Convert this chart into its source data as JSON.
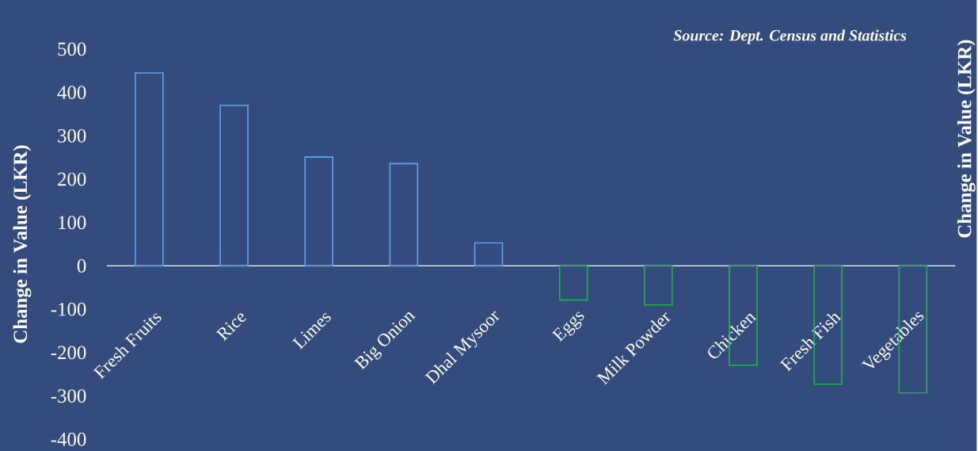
{
  "chart_data": {
    "type": "bar",
    "categories": [
      "Fresh Fruits",
      "Rice",
      "Limes",
      "Big Onion",
      "Dhal Mysoor",
      "Eggs",
      "Milk Powder",
      "Chicken",
      "Fresh Fish",
      "Vegetables"
    ],
    "values": [
      445,
      370,
      251,
      236,
      53,
      -79,
      -90,
      -229,
      -273,
      -293
    ],
    "colors": [
      "#5aa5ee",
      "#5aa5ee",
      "#5aa5ee",
      "#5aa5ee",
      "#5aa5ee",
      "#22b24c",
      "#22b24c",
      "#22b24c",
      "#22b24c",
      "#22b24c"
    ],
    "ylim": [
      -400,
      500
    ],
    "yticks": [
      -400,
      -300,
      -200,
      -100,
      0,
      100,
      200,
      300,
      400,
      500
    ],
    "ylabel": "Change in Value (LKR)",
    "y2label": "Change in Value (LKR)",
    "annotations": [
      "Source: Dept. Census and Statistics"
    ]
  }
}
